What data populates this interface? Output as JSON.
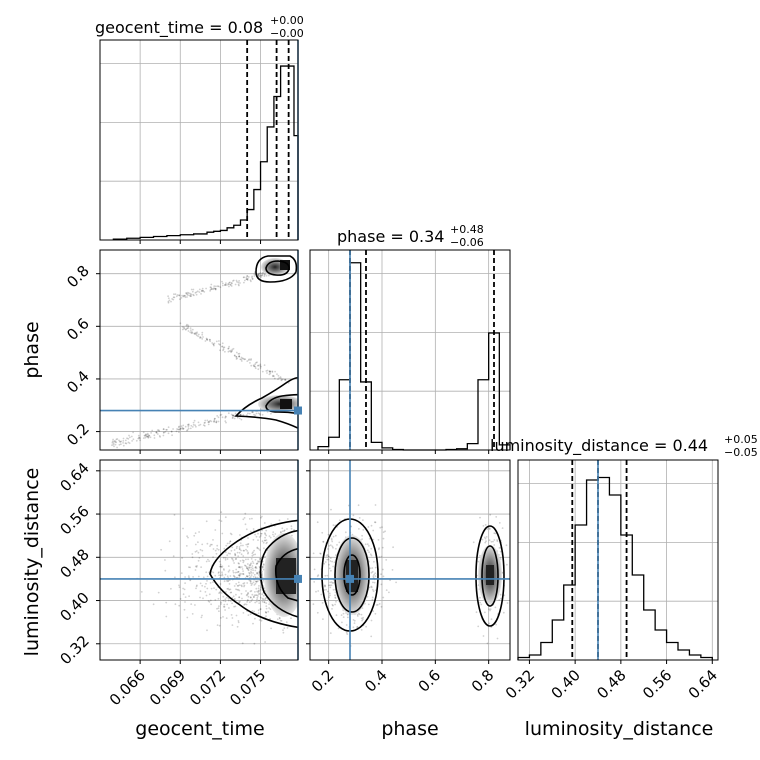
{
  "chart_data": {
    "type": "corner",
    "parameters": [
      "geocent_time",
      "phase",
      "luminosity_distance"
    ],
    "truths": {
      "geocent_time": 0.0778,
      "phase": 0.28,
      "luminosity_distance": 0.44
    },
    "colors": {
      "truth": "#4682b4",
      "hist": "#000000",
      "grid": "#b0b0b0",
      "scatter": "#000000"
    },
    "panels": {
      "geocent_time": {
        "title": "geocent_time = 0.08",
        "title_sup": "+0.00",
        "title_sub": "−0.00",
        "xlim": [
          0.063,
          0.0778
        ],
        "quantiles": [
          0.074,
          0.0762,
          0.0771
        ],
        "truth": 0.0778,
        "hist_edges": [
          0.064,
          0.065,
          0.066,
          0.067,
          0.068,
          0.069,
          0.07,
          0.071,
          0.0715,
          0.072,
          0.0725,
          0.073,
          0.0735,
          0.074,
          0.0745,
          0.075,
          0.0755,
          0.076,
          0.0765,
          0.077,
          0.0775,
          0.0778
        ],
        "hist_counts": [
          1,
          2,
          3,
          4,
          5,
          6,
          7,
          9,
          10,
          11,
          14,
          17,
          23,
          35,
          58,
          90,
          130,
          165,
          200,
          200,
          120
        ],
        "hist_max": 230
      },
      "phase": {
        "title": "phase = 0.34",
        "title_sup": "+0.48",
        "title_sub": "−0.06",
        "xlim": [
          0.13,
          0.88
        ],
        "quantiles": [
          0.28,
          0.34,
          0.82
        ],
        "truth": 0.28,
        "hist_edges": [
          0.16,
          0.2,
          0.24,
          0.28,
          0.32,
          0.36,
          0.4,
          0.44,
          0.48,
          0.52,
          0.56,
          0.6,
          0.64,
          0.68,
          0.72,
          0.76,
          0.8,
          0.84,
          0.88
        ],
        "hist_counts": [
          8,
          30,
          165,
          440,
          160,
          18,
          5,
          1,
          0,
          0,
          0,
          0,
          1,
          3,
          15,
          165,
          275,
          12
        ],
        "hist_max": 470
      },
      "luminosity_distance": {
        "title": "luminosity_distance = 0.44",
        "title_sup": "+0.05",
        "title_sub": "−0.05",
        "xlim": [
          0.3,
          0.65
        ],
        "quantiles": [
          0.395,
          0.44,
          0.49
        ],
        "truth": 0.44,
        "hist_edges": [
          0.3,
          0.32,
          0.34,
          0.36,
          0.38,
          0.4,
          0.42,
          0.44,
          0.46,
          0.48,
          0.5,
          0.52,
          0.54,
          0.56,
          0.58,
          0.6,
          0.62,
          0.64
        ],
        "hist_counts": [
          5,
          10,
          35,
          80,
          150,
          270,
          360,
          365,
          330,
          250,
          170,
          100,
          60,
          35,
          20,
          10,
          5
        ],
        "hist_max": 400
      }
    },
    "axes": {
      "geocent_time": {
        "xticks": [
          0.066,
          0.069,
          0.072,
          0.075
        ],
        "tick_labels": [
          "0.066",
          "0.069",
          "0.072",
          "0.075"
        ],
        "label": "geocent_time"
      },
      "phase": {
        "xticks": [
          0.2,
          0.4,
          0.6,
          0.8
        ],
        "tick_labels": [
          "0.2",
          "0.4",
          "0.6",
          "0.8"
        ],
        "ylim": [
          0.13,
          0.89
        ],
        "label": "phase"
      },
      "luminosity_distance": {
        "xticks": [
          0.32,
          0.4,
          0.48,
          0.56,
          0.64
        ],
        "tick_labels": [
          "0.32",
          "0.40",
          "0.48",
          "0.56",
          "0.64"
        ],
        "ylim": [
          0.29,
          0.66
        ],
        "label": "luminosity_distance"
      }
    }
  }
}
